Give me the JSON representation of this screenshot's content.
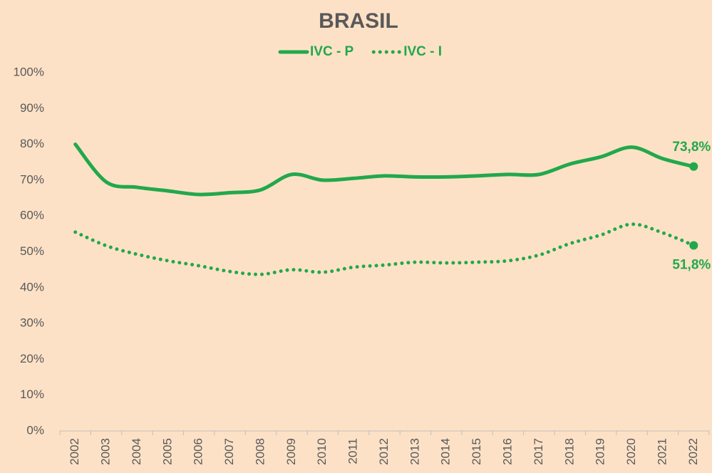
{
  "chart_data": {
    "type": "line",
    "title": "BRASIL",
    "categories": [
      "2002",
      "2003",
      "2004",
      "2005",
      "2006",
      "2007",
      "2008",
      "2009",
      "2010",
      "2011",
      "2012",
      "2013",
      "2014",
      "2015",
      "2016",
      "2017",
      "2018",
      "2019",
      "2020",
      "2021",
      "2022"
    ],
    "series": [
      {
        "name": "IVC - P",
        "color": "#22a84c",
        "style": "solid",
        "values": [
          80.0,
          69.5,
          68.0,
          67.0,
          66.0,
          66.5,
          67.3,
          71.6,
          70.0,
          70.5,
          71.2,
          70.9,
          70.9,
          71.2,
          71.6,
          71.6,
          74.5,
          76.5,
          79.2,
          76.0,
          73.8
        ],
        "value_labels": [
          null,
          null,
          null,
          null,
          null,
          null,
          null,
          null,
          null,
          null,
          null,
          null,
          null,
          null,
          null,
          null,
          null,
          null,
          null,
          null,
          "73,8%"
        ]
      },
      {
        "name": "IVC - I",
        "color": "#22a84c",
        "style": "dotted",
        "values": [
          55.5,
          51.7,
          49.3,
          47.5,
          46.1,
          44.5,
          43.7,
          45.0,
          44.3,
          45.7,
          46.3,
          47.1,
          46.9,
          47.1,
          47.5,
          49.1,
          52.3,
          54.7,
          57.7,
          55.3,
          51.8
        ],
        "value_labels": [
          null,
          null,
          null,
          null,
          null,
          null,
          null,
          null,
          null,
          null,
          null,
          null,
          null,
          null,
          null,
          null,
          null,
          null,
          null,
          null,
          "51,8%"
        ]
      }
    ],
    "ylim": [
      0,
      100
    ],
    "yticks": [
      {
        "value": 0,
        "label": "0%"
      },
      {
        "value": 10,
        "label": "10%"
      },
      {
        "value": 20,
        "label": "20%"
      },
      {
        "value": 30,
        "label": "30%"
      },
      {
        "value": 40,
        "label": "40%"
      },
      {
        "value": 50,
        "label": "50%"
      },
      {
        "value": 60,
        "label": "60%"
      },
      {
        "value": 70,
        "label": "70%"
      },
      {
        "value": 80,
        "label": "80%"
      },
      {
        "value": 90,
        "label": "90%"
      },
      {
        "value": 100,
        "label": "100%"
      }
    ],
    "grid": false,
    "legend": "top"
  }
}
